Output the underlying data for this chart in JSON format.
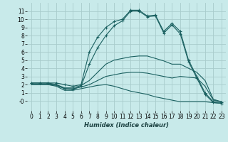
{
  "xlabel": "Humidex (Indice chaleur)",
  "bg_color": "#c8eaea",
  "grid_color": "#a8cccc",
  "line_color": "#1a6060",
  "xlim": [
    -0.5,
    23.5
  ],
  "ylim": [
    -1.2,
    12.0
  ],
  "xticks": [
    0,
    1,
    2,
    3,
    4,
    5,
    6,
    7,
    8,
    9,
    10,
    11,
    12,
    13,
    14,
    15,
    16,
    17,
    18,
    19,
    20,
    21,
    22,
    23
  ],
  "yticks": [
    0,
    1,
    2,
    3,
    4,
    5,
    6,
    7,
    8,
    9,
    10,
    11
  ],
  "ytick_labels": [
    "-0",
    "1",
    "2",
    "3",
    "4",
    "5",
    "6",
    "7",
    "8",
    "9",
    "10",
    "11"
  ],
  "lines": [
    {
      "x": [
        0,
        1,
        2,
        3,
        4,
        5,
        6,
        7,
        8,
        9,
        10,
        11,
        12,
        13,
        14,
        15,
        16,
        17,
        18,
        19,
        20,
        21,
        22,
        23
      ],
      "y": [
        2.2,
        2.2,
        2.2,
        2.2,
        2.0,
        1.8,
        2.0,
        6.0,
        7.8,
        9.0,
        9.7,
        10.0,
        11.1,
        11.1,
        10.4,
        10.5,
        8.5,
        9.5,
        8.5,
        5.0,
        3.0,
        1.0,
        -0.1,
        -0.2
      ],
      "marker": true
    },
    {
      "x": [
        0,
        1,
        2,
        3,
        4,
        5,
        6,
        7,
        8,
        9,
        10,
        11,
        12,
        13,
        14,
        15,
        16,
        17,
        18,
        19,
        20,
        21,
        22,
        23
      ],
      "y": [
        2.2,
        2.2,
        2.2,
        2.0,
        1.5,
        1.4,
        1.8,
        4.5,
        6.5,
        8.0,
        9.2,
        9.8,
        11.0,
        11.0,
        10.3,
        10.4,
        8.3,
        9.3,
        8.2,
        4.8,
        2.8,
        0.8,
        -0.2,
        -0.3
      ],
      "marker": true
    },
    {
      "x": [
        0,
        1,
        2,
        3,
        4,
        5,
        6,
        7,
        8,
        9,
        10,
        11,
        12,
        13,
        14,
        15,
        16,
        17,
        18,
        19,
        20,
        21,
        22,
        23
      ],
      "y": [
        2.1,
        2.1,
        2.1,
        2.0,
        1.6,
        1.6,
        1.9,
        2.5,
        3.5,
        4.5,
        5.0,
        5.2,
        5.4,
        5.5,
        5.5,
        5.2,
        4.9,
        4.5,
        4.5,
        4.0,
        3.5,
        2.5,
        0.2,
        -0.1
      ],
      "marker": false
    },
    {
      "x": [
        0,
        1,
        2,
        3,
        4,
        5,
        6,
        7,
        8,
        9,
        10,
        11,
        12,
        13,
        14,
        15,
        16,
        17,
        18,
        19,
        20,
        21,
        22,
        23
      ],
      "y": [
        2.0,
        2.0,
        2.0,
        1.9,
        1.5,
        1.5,
        1.7,
        2.0,
        2.5,
        3.0,
        3.2,
        3.4,
        3.5,
        3.5,
        3.4,
        3.2,
        3.0,
        2.8,
        3.0,
        2.9,
        2.8,
        1.8,
        0.1,
        -0.1
      ],
      "marker": false
    },
    {
      "x": [
        0,
        1,
        2,
        3,
        4,
        5,
        6,
        7,
        8,
        9,
        10,
        11,
        12,
        13,
        14,
        15,
        16,
        17,
        18,
        19,
        20,
        21,
        22,
        23
      ],
      "y": [
        2.0,
        2.0,
        2.0,
        1.8,
        1.3,
        1.3,
        1.5,
        1.7,
        1.9,
        2.0,
        1.8,
        1.5,
        1.2,
        1.0,
        0.8,
        0.5,
        0.3,
        0.1,
        -0.1,
        -0.1,
        -0.1,
        -0.1,
        -0.2,
        -0.3
      ],
      "marker": false
    }
  ]
}
